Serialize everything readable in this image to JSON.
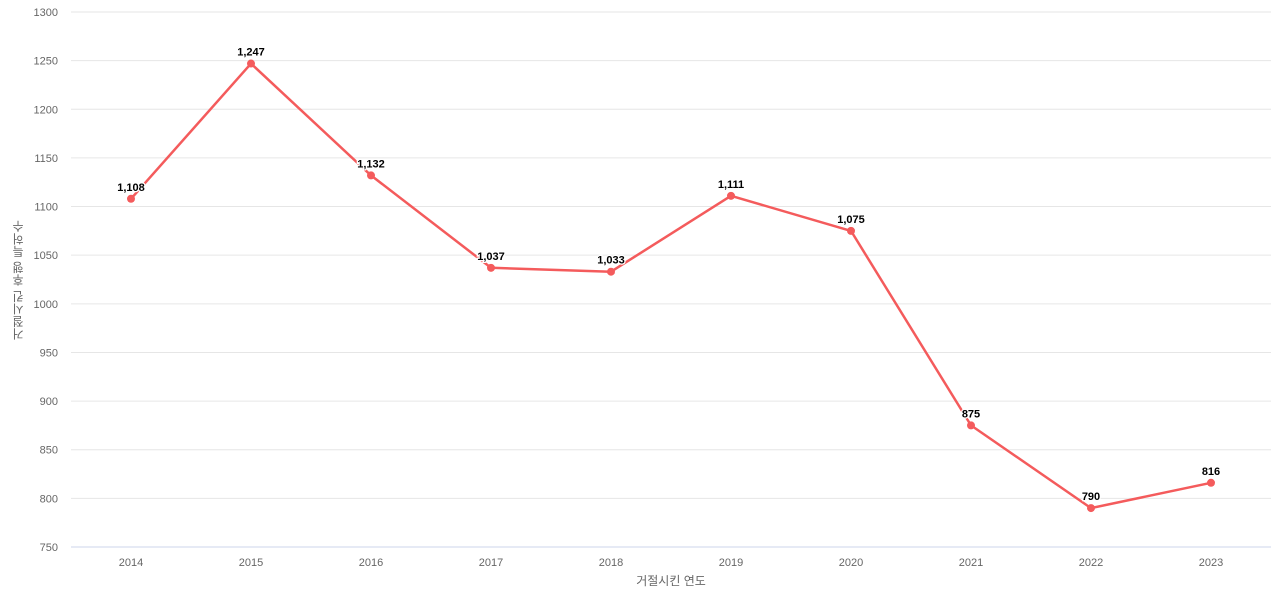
{
  "chart_data": {
    "type": "line",
    "title": "",
    "xlabel": "거절시킨 연도",
    "ylabel": "거절시킨 후행 특허수",
    "categories": [
      "2014",
      "2015",
      "2016",
      "2017",
      "2018",
      "2019",
      "2020",
      "2021",
      "2022",
      "2023"
    ],
    "values": [
      1108,
      1247,
      1132,
      1037,
      1033,
      1111,
      1075,
      875,
      790,
      816
    ],
    "point_labels": [
      "1,108",
      "1,247",
      "1,132",
      "1,037",
      "1,033",
      "1,111",
      "1,075",
      "875",
      "790",
      "816"
    ],
    "ylim": [
      750,
      1300
    ],
    "ytick_step": 50,
    "grid": "horizontal",
    "legend": "none",
    "series_color": "#f45b5c",
    "marker_color": "#f45b5c"
  },
  "style_colors": {
    "background": "#ffffff",
    "grid_color": "#e6e6e6",
    "axis_line_color": "#ccd6eb",
    "tick_label_color": "#666666",
    "axis_title_color": "#666666",
    "data_label_color": "#000000"
  }
}
